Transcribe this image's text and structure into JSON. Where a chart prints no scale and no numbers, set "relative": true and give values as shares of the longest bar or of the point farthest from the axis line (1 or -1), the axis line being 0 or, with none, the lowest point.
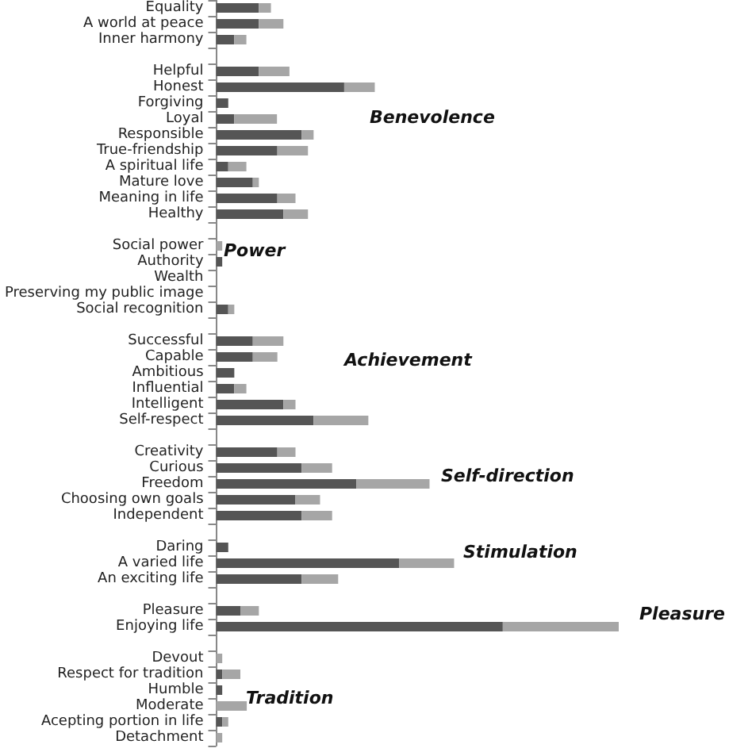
{
  "chart_data": {
    "type": "bar",
    "orientation": "horizontal",
    "stacked": true,
    "relative": true,
    "categories": [
      "Equality",
      "A world at peace",
      "Inner harmony",
      null,
      "Helpful",
      "Honest",
      "Forgiving",
      "Loyal",
      "Responsible",
      "True-friendship",
      "A spiritual life",
      "Mature love",
      "Meaning in life",
      "Healthy",
      null,
      "Social power",
      "Authority",
      "Wealth",
      "Preserving my public image",
      "Social recognition",
      null,
      "Successful",
      "Capable",
      "Ambitious",
      "Influential",
      "Intelligent",
      "Self-respect",
      null,
      "Creativity",
      "Curious",
      "Freedom",
      "Choosing own goals",
      "Independent",
      null,
      "Daring",
      "A varied life",
      "An exciting life",
      null,
      "Pleasure",
      "Enjoying life",
      null,
      "Devout",
      "Respect for tradition",
      "Humble",
      "Moderate",
      "Acepting portion in life",
      "Detachment"
    ],
    "series": [
      {
        "color": "#555555",
        "values": [
          0.106,
          0.106,
          0.045,
          null,
          0.106,
          0.318,
          0.03,
          0.045,
          0.212,
          0.152,
          0.03,
          0.091,
          0.152,
          0.167,
          null,
          0,
          0.015,
          0,
          0,
          0.03,
          null,
          0.091,
          0.091,
          0.045,
          0.045,
          0.167,
          0.242,
          null,
          0.152,
          0.212,
          0.348,
          0.197,
          0.212,
          null,
          0.03,
          0.455,
          0.212,
          null,
          0.061,
          0.712,
          null,
          0,
          0.015,
          0.015,
          0,
          0.015,
          0
        ]
      },
      {
        "color": "#a6a6a6",
        "values": [
          0.03,
          0.061,
          0.03,
          null,
          0.076,
          0.076,
          0,
          0.106,
          0.03,
          0.076,
          0.045,
          0.015,
          0.045,
          0.061,
          null,
          0.015,
          0,
          0,
          0,
          0.015,
          null,
          0.076,
          0.061,
          0,
          0.03,
          0.03,
          0.136,
          null,
          0.045,
          0.076,
          0.182,
          0.061,
          0.076,
          null,
          0,
          0.136,
          0.091,
          null,
          0.045,
          0.288,
          null,
          0.015,
          0.045,
          0,
          0.076,
          0.015,
          0.015
        ]
      }
    ],
    "annotations": [
      "Benevolence",
      "Power",
      "Achievement",
      "Self-direction",
      "Stimulation",
      "Pleasure",
      "Tradition"
    ]
  }
}
